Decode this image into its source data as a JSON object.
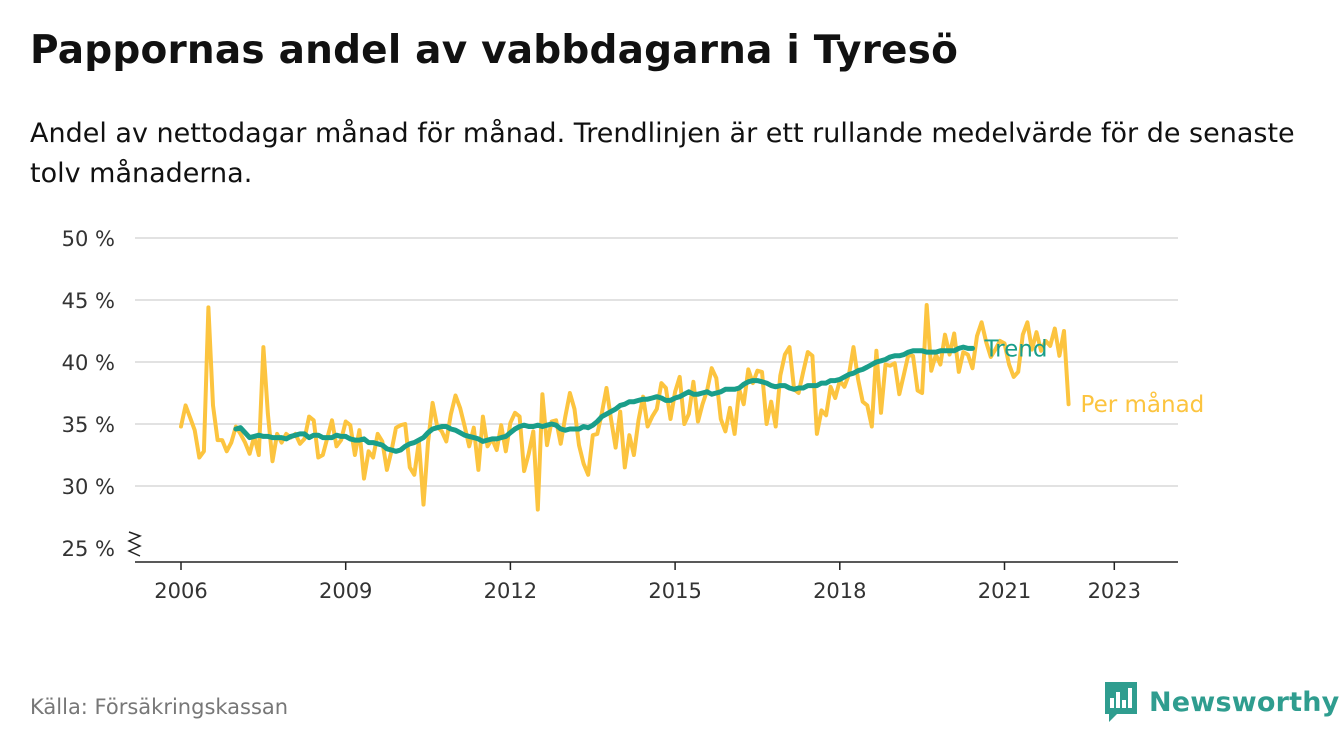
{
  "title": "Pappornas andel av vabbdagarna i Tyresö",
  "subtitle": "Andel av nettodagar månad för månad. Trendlinjen är ett rullande medelvärde för de senaste tolv månaderna.",
  "source": "Källa: Försäkringskassan",
  "brand": {
    "name": "Newsworthy",
    "color": "#2f9d8f"
  },
  "chart_data": {
    "type": "line",
    "title": "Pappornas andel av vabbdagarna i Tyresö",
    "ylim": [
      25,
      50
    ],
    "y_ticks": [
      25,
      30,
      35,
      40,
      45,
      50
    ],
    "y_tick_labels": [
      "25 %",
      "30 %",
      "35 %",
      "40 %",
      "45 %",
      "50 %"
    ],
    "y_axis_break": true,
    "x_ticks": [
      2006,
      2009,
      2012,
      2015,
      2018,
      2021,
      2023
    ],
    "x_tick_labels": [
      "2006",
      "2009",
      "2012",
      "2015",
      "2018",
      "2021",
      "2023"
    ],
    "grid": true,
    "legend": "direct labels at right end of lines",
    "x_start": "2006-01",
    "x_step": "month",
    "series": [
      {
        "name": "Per månad",
        "color": "#fcc43f",
        "start": "2006-01",
        "values": [
          34.8,
          36.5,
          35.5,
          34.5,
          32.3,
          32.8,
          44.4,
          36.5,
          33.7,
          33.7,
          32.8,
          33.5,
          34.8,
          34.2,
          33.5,
          32.6,
          34.0,
          32.5,
          41.2,
          35.8,
          32.0,
          34.2,
          33.5,
          34.2,
          33.9,
          34.2,
          33.4,
          33.8,
          35.6,
          35.3,
          32.3,
          32.5,
          33.9,
          35.3,
          33.2,
          33.7,
          35.2,
          34.9,
          32.5,
          34.5,
          30.6,
          32.8,
          32.3,
          34.2,
          33.6,
          31.3,
          32.8,
          34.7,
          34.9,
          35.0,
          31.5,
          30.9,
          33.6,
          28.5,
          33.5,
          36.7,
          34.8,
          34.4,
          33.6,
          35.8,
          37.3,
          36.3,
          34.8,
          33.2,
          34.7,
          31.3,
          35.6,
          33.2,
          33.8,
          32.9,
          34.9,
          32.8,
          35.1,
          35.9,
          35.6,
          31.2,
          32.6,
          34.4,
          28.1,
          37.4,
          33.3,
          35.2,
          35.3,
          33.4,
          35.6,
          37.5,
          36.2,
          33.3,
          31.8,
          30.9,
          34.1,
          34.2,
          35.9,
          37.9,
          35.4,
          33.1,
          36.0,
          31.5,
          34.1,
          32.5,
          35.3,
          37.2,
          34.8,
          35.6,
          36.2,
          38.3,
          37.9,
          35.4,
          37.6,
          38.8,
          35.0,
          35.8,
          38.4,
          35.2,
          36.6,
          37.7,
          39.5,
          38.7,
          35.4,
          34.4,
          36.3,
          34.2,
          37.8,
          36.6,
          39.4,
          38.3,
          39.3,
          39.2,
          35.0,
          36.8,
          34.8,
          38.9,
          40.6,
          41.2,
          37.8,
          37.5,
          39.2,
          40.8,
          40.5,
          34.2,
          36.1,
          35.7,
          38.0,
          37.1,
          38.5,
          38.0,
          39.0,
          41.2,
          38.6,
          36.8,
          36.5,
          34.8,
          40.9,
          35.9,
          39.8,
          39.7,
          39.9,
          37.4,
          39.0,
          40.6,
          40.5,
          37.7,
          37.5,
          44.6,
          39.3,
          40.6,
          39.8,
          42.2,
          40.6,
          42.3,
          39.2,
          40.8,
          40.6,
          39.5,
          42.1,
          43.2,
          41.6,
          40.4,
          41.0,
          41.7,
          41.5,
          39.8,
          38.8,
          39.2,
          42.2,
          43.2,
          41.0,
          42.4,
          40.9,
          41.7,
          41.3,
          42.7,
          40.5,
          42.5,
          36.6
        ]
      },
      {
        "name": "Trend",
        "color": "#1a9e8a",
        "start": "2007-01",
        "values": [
          34.6,
          34.7,
          34.3,
          33.9,
          34.0,
          34.1,
          34.0,
          34.0,
          33.9,
          33.9,
          33.9,
          33.8,
          34.0,
          34.1,
          34.2,
          34.2,
          33.9,
          34.1,
          34.1,
          33.9,
          33.9,
          33.9,
          34.1,
          34.0,
          34.0,
          33.8,
          33.7,
          33.7,
          33.8,
          33.5,
          33.5,
          33.4,
          33.3,
          33.0,
          32.9,
          32.8,
          32.9,
          33.2,
          33.4,
          33.5,
          33.7,
          33.9,
          34.3,
          34.6,
          34.7,
          34.8,
          34.8,
          34.6,
          34.5,
          34.3,
          34.1,
          34.0,
          33.9,
          33.8,
          33.6,
          33.7,
          33.8,
          33.8,
          33.9,
          34.0,
          34.3,
          34.6,
          34.8,
          34.9,
          34.8,
          34.8,
          34.9,
          34.8,
          34.9,
          35.0,
          34.9,
          34.6,
          34.5,
          34.6,
          34.6,
          34.6,
          34.8,
          34.7,
          34.9,
          35.2,
          35.6,
          35.8,
          36.0,
          36.2,
          36.5,
          36.6,
          36.8,
          36.8,
          36.9,
          37.0,
          37.0,
          37.1,
          37.2,
          37.1,
          36.9,
          36.9,
          37.1,
          37.2,
          37.4,
          37.6,
          37.4,
          37.4,
          37.5,
          37.6,
          37.4,
          37.5,
          37.6,
          37.8,
          37.8,
          37.8,
          37.9,
          38.2,
          38.4,
          38.5,
          38.5,
          38.4,
          38.3,
          38.1,
          38.0,
          38.1,
          38.1,
          37.9,
          37.8,
          37.9,
          37.9,
          38.1,
          38.1,
          38.1,
          38.3,
          38.3,
          38.5,
          38.5,
          38.6,
          38.8,
          39.0,
          39.1,
          39.3,
          39.4,
          39.6,
          39.8,
          40.0,
          40.1,
          40.2,
          40.4,
          40.5,
          40.5,
          40.6,
          40.8,
          40.9,
          40.9,
          40.9,
          40.8,
          40.8,
          40.8,
          40.9,
          40.9,
          40.9,
          40.9,
          41.1,
          41.2,
          41.1,
          41.1
        ]
      }
    ]
  }
}
